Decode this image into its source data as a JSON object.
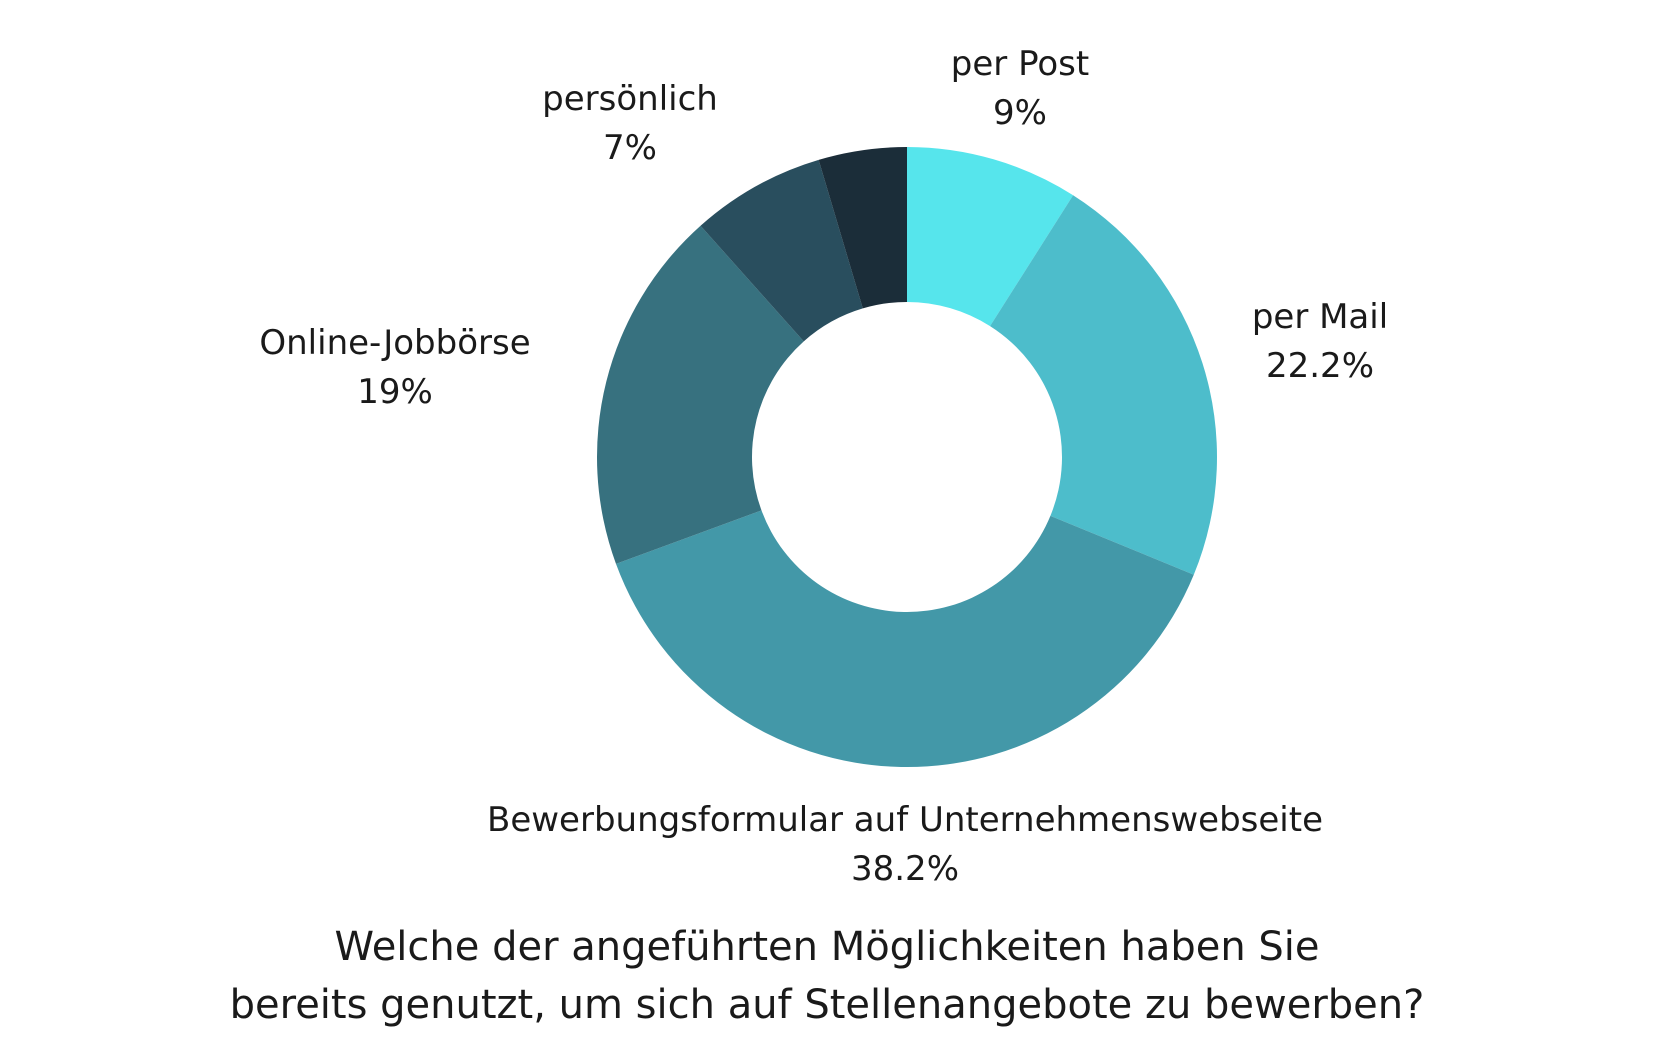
{
  "chart_data": {
    "type": "pie",
    "variant": "donut",
    "title": "Welche der angeführten Möglichkeiten haben Sie bereits genutzt, um sich auf Stellenangebote zu bewerben?",
    "title_lines": [
      "Welche der angeführten Möglichkeiten haben Sie",
      "bereits genutzt, um sich auf Stellenangebote zu bewerben?"
    ],
    "legend": "none",
    "slices": [
      {
        "key": "post",
        "label": "per Post",
        "value": 9,
        "value_label": "9%",
        "color": "#56E5EC"
      },
      {
        "key": "mail",
        "label": "per Mail",
        "value": 22.2,
        "value_label": "22.2%",
        "color": "#4DBDCB"
      },
      {
        "key": "form",
        "label": "Bewerbungsformular auf Unternehmenswebseite",
        "value": 38.2,
        "value_label": "38.2%",
        "color": "#4398A8"
      },
      {
        "key": "online",
        "label": "Online-Jobbörse",
        "value": 19,
        "value_label": "19%",
        "color": "#37717F"
      },
      {
        "key": "pers",
        "label": "persönlich",
        "value": 7,
        "value_label": "7%",
        "color": "#294E5E"
      },
      {
        "key": "other",
        "label": "",
        "value": 4.6,
        "value_label": "",
        "color": "#1B2D39"
      }
    ]
  }
}
